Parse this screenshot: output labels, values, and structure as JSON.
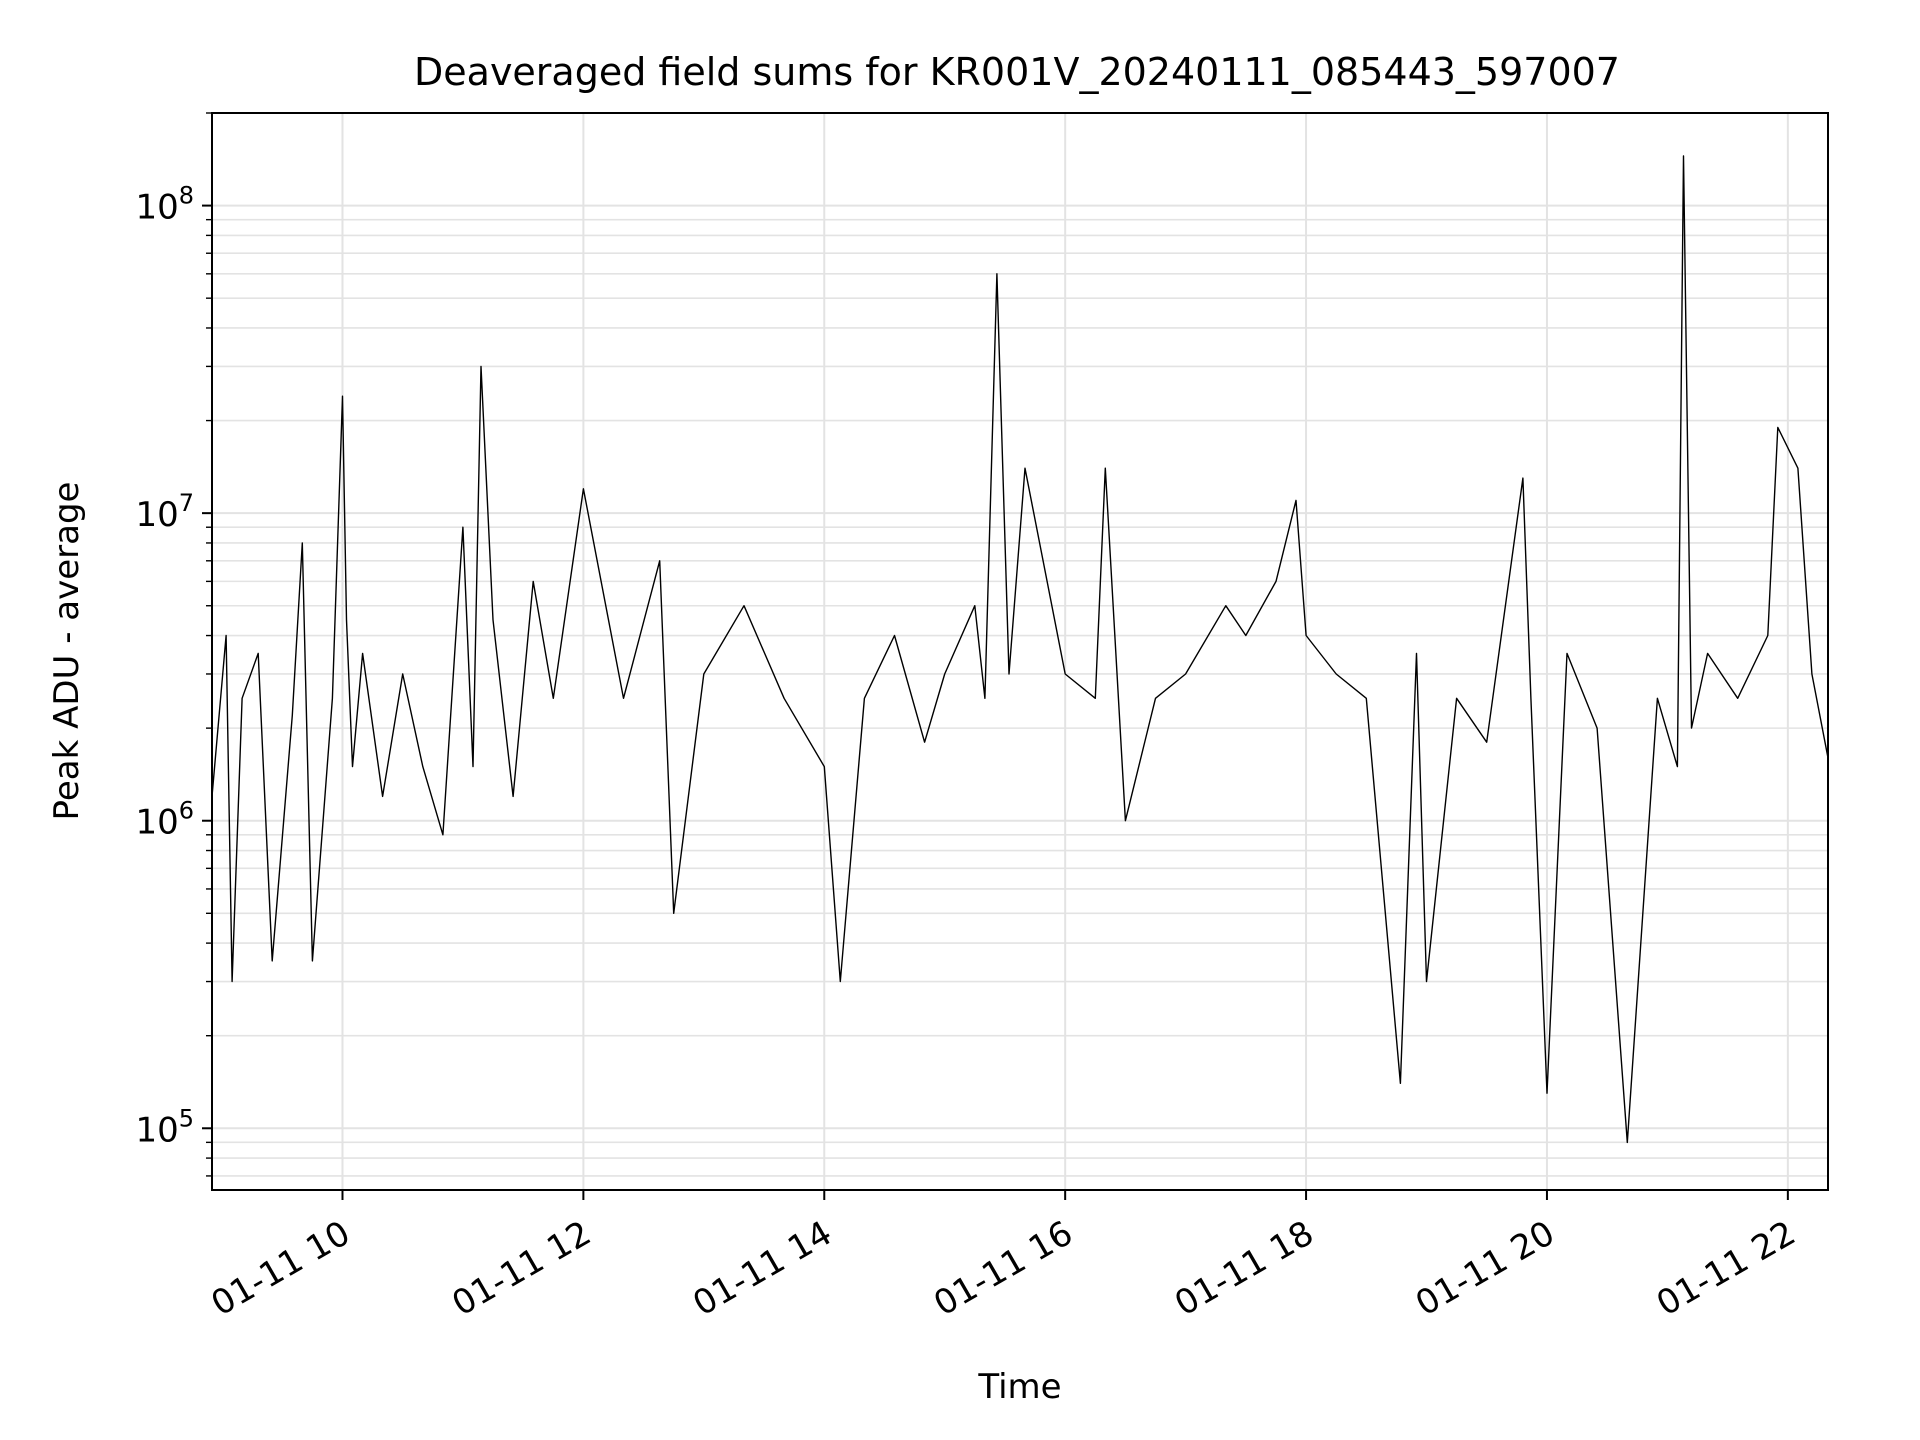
{
  "chart_data": {
    "type": "line",
    "title": "Deaveraged field sums for KR001V_20240111_085443_597007",
    "xlabel": "Time",
    "ylabel": "Peak ADU - average",
    "yscale": "log",
    "grid": true,
    "xlim": [
      "01-11 08:55",
      "01-11 22:20"
    ],
    "ylim": [
      63000,
      200000000
    ],
    "x_ticks": [
      "01-11 10",
      "01-11 12",
      "01-11 14",
      "01-11 16",
      "01-11 18",
      "01-11 20",
      "01-11 22"
    ],
    "y_ticks": [
      {
        "base": "10",
        "exp": "5",
        "value": 100000
      },
      {
        "base": "10",
        "exp": "6",
        "value": 1000000
      },
      {
        "base": "10",
        "exp": "7",
        "value": 10000000
      },
      {
        "base": "10",
        "exp": "8",
        "value": 100000000
      }
    ],
    "line_color": "#000000",
    "series": [
      {
        "x": [
          "01-11 08:55",
          "01-11 09:02",
          "01-11 09:05",
          "01-11 09:10",
          "01-11 09:18",
          "01-11 09:25",
          "01-11 09:35",
          "01-11 09:40",
          "01-11 09:45",
          "01-11 09:55",
          "01-11 10:00",
          "01-11 10:02",
          "01-11 10:05",
          "01-11 10:10",
          "01-11 10:20",
          "01-11 10:30",
          "01-11 10:40",
          "01-11 10:50",
          "01-11 11:00",
          "01-11 11:05",
          "01-11 11:09",
          "01-11 11:15",
          "01-11 11:25",
          "01-11 11:35",
          "01-11 11:45",
          "01-11 12:00",
          "01-11 12:20",
          "01-11 12:38",
          "01-11 12:45",
          "01-11 13:00",
          "01-11 13:20",
          "01-11 13:40",
          "01-11 14:00",
          "01-11 14:08",
          "01-11 14:20",
          "01-11 14:35",
          "01-11 14:50",
          "01-11 15:00",
          "01-11 15:15",
          "01-11 15:20",
          "01-11 15:26",
          "01-11 15:32",
          "01-11 15:40",
          "01-11 16:00",
          "01-11 16:15",
          "01-11 16:20",
          "01-11 16:30",
          "01-11 16:45",
          "01-11 17:00",
          "01-11 17:20",
          "01-11 17:30",
          "01-11 17:45",
          "01-11 17:55",
          "01-11 18:00",
          "01-11 18:15",
          "01-11 18:30",
          "01-11 18:47",
          "01-11 18:55",
          "01-11 19:00",
          "01-11 19:15",
          "01-11 19:30",
          "01-11 19:48",
          "01-11 19:52",
          "01-11 20:00",
          "01-11 20:10",
          "01-11 20:25",
          "01-11 20:40",
          "01-11 20:55",
          "01-11 21:05",
          "01-11 21:08",
          "01-11 21:12",
          "01-11 21:20",
          "01-11 21:35",
          "01-11 21:50",
          "01-11 21:55",
          "01-11 22:05",
          "01-11 22:12",
          "01-11 22:20"
        ],
        "y": [
          1200000,
          4000000,
          300000,
          2500000,
          3500000,
          350000,
          2200000,
          8000000,
          350000,
          2500000,
          24000000,
          4500000,
          1500000,
          3500000,
          1200000,
          3000000,
          1500000,
          900000,
          9000000,
          1500000,
          30000000,
          4500000,
          1200000,
          6000000,
          2500000,
          12000000,
          2500000,
          7000000,
          500000,
          3000000,
          5000000,
          2500000,
          1500000,
          300000,
          2500000,
          4000000,
          1800000,
          3000000,
          5000000,
          2500000,
          60000000,
          3000000,
          14000000,
          3000000,
          2500000,
          14000000,
          1000000,
          2500000,
          3000000,
          5000000,
          4000000,
          6000000,
          11000000,
          4000000,
          3000000,
          2500000,
          140000,
          3500000,
          300000,
          2500000,
          1800000,
          13000000,
          2500000,
          130000,
          3500000,
          2000000,
          90000,
          2500000,
          1500000,
          145000000,
          2000000,
          3500000,
          2500000,
          4000000,
          19000000,
          14000000,
          3000000,
          1600000
        ]
      }
    ]
  }
}
